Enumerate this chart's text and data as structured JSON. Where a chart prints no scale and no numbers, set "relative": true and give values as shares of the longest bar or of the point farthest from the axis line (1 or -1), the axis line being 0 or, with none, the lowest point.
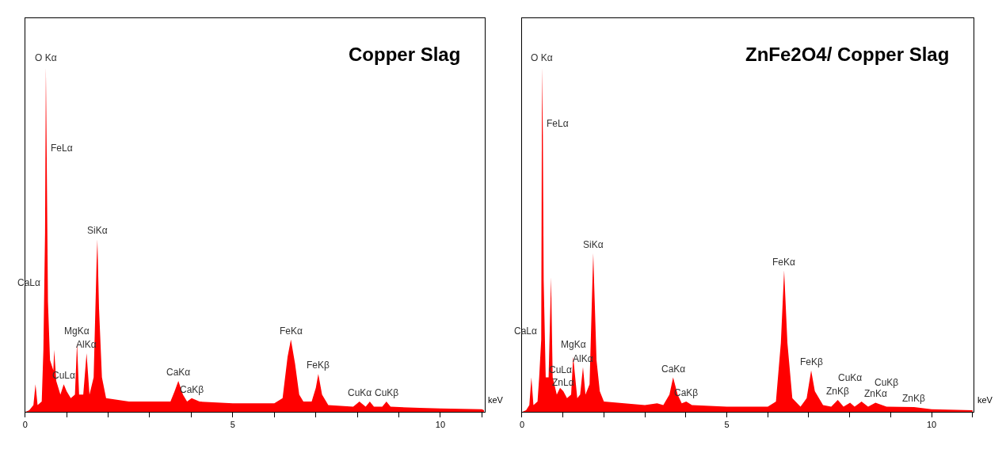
{
  "chart_data": [
    {
      "type": "area",
      "title": "Copper Slag",
      "xlabel": "keV",
      "relative": true,
      "xlim": [
        0,
        11.06
      ],
      "xticks": [
        0,
        {
          "value": 1,
          "label": null
        },
        {
          "value": 2,
          "label": null
        },
        {
          "value": 3,
          "label": null
        },
        {
          "value": 4,
          "label": null
        },
        5,
        {
          "value": 6,
          "label": null
        },
        {
          "value": 7,
          "label": null
        },
        {
          "value": 8,
          "label": null
        },
        {
          "value": 9,
          "label": null
        },
        10,
        {
          "value": 11,
          "label": null
        }
      ],
      "tick_labels": "x",
      "series": [
        {
          "color": "#ff0000",
          "x": [
            0,
            0.1,
            0.2,
            0.25,
            0.3,
            0.4,
            0.44,
            0.46,
            0.48,
            0.5,
            0.52,
            0.55,
            0.6,
            0.68,
            0.7,
            0.75,
            0.85,
            0.93,
            1.0,
            1.1,
            1.2,
            1.25,
            1.3,
            1.4,
            1.48,
            1.55,
            1.65,
            1.72,
            1.74,
            1.78,
            1.85,
            1.95,
            2.5,
            3.0,
            3.5,
            3.6,
            3.69,
            3.8,
            3.9,
            4.01,
            4.2,
            5,
            6.0,
            6.2,
            6.32,
            6.4,
            6.5,
            6.6,
            6.7,
            6.9,
            7.0,
            7.06,
            7.15,
            7.3,
            7.9,
            8.05,
            8.2,
            8.3,
            8.4,
            8.6,
            8.7,
            8.8,
            9.5,
            10,
            11,
            11.05
          ],
          "values": [
            0,
            0.005,
            0.02,
            0.08,
            0.02,
            0.03,
            0.18,
            0.35,
            0.52,
            1.0,
            0.74,
            0.32,
            0.15,
            0.12,
            0.18,
            0.09,
            0.05,
            0.08,
            0.06,
            0.04,
            0.05,
            0.2,
            0.05,
            0.05,
            0.17,
            0.05,
            0.1,
            0.43,
            0.5,
            0.3,
            0.1,
            0.04,
            0.03,
            0.03,
            0.03,
            0.06,
            0.09,
            0.05,
            0.03,
            0.04,
            0.03,
            0.025,
            0.025,
            0.04,
            0.16,
            0.21,
            0.14,
            0.05,
            0.03,
            0.03,
            0.07,
            0.11,
            0.05,
            0.02,
            0.015,
            0.03,
            0.015,
            0.03,
            0.015,
            0.015,
            0.03,
            0.015,
            0.012,
            0.01,
            0.008,
            0.005
          ]
        }
      ],
      "annotations": [
        {
          "text": "O Kα",
          "x": 0.5,
          "y": 1.0
        },
        {
          "text": "FeLα",
          "x": 0.52,
          "y": 0.74
        },
        {
          "text": "SiKα",
          "x": 1.74,
          "y": 0.5
        },
        {
          "text": "CaLα",
          "x": 0.46,
          "y": 0.35
        },
        {
          "text": "AlKα",
          "x": 1.48,
          "y": 0.17
        },
        {
          "text": "MgKα",
          "x": 1.25,
          "y": 0.2
        },
        {
          "text": "CuLα",
          "x": 0.93,
          "y": 0.08
        },
        {
          "text": "CaKα",
          "x": 3.69,
          "y": 0.09
        },
        {
          "text": "CaKβ",
          "x": 4.01,
          "y": 0.04
        },
        {
          "text": "FeKα",
          "x": 6.4,
          "y": 0.21
        },
        {
          "text": "FeKβ",
          "x": 7.06,
          "y": 0.11
        },
        {
          "text": "CuKα",
          "x": 8.05,
          "y": 0.03
        },
        {
          "text": "CuKβ",
          "x": 8.7,
          "y": 0.03
        }
      ]
    },
    {
      "type": "area",
      "title": "ZnFe2O4/ Copper Slag",
      "xlabel": "keV",
      "relative": true,
      "xlim": [
        0,
        11.02
      ],
      "xticks": [
        0,
        {
          "value": 1,
          "label": null
        },
        {
          "value": 2,
          "label": null
        },
        {
          "value": 3,
          "label": null
        },
        {
          "value": 4,
          "label": null
        },
        5,
        {
          "value": 6,
          "label": null
        },
        {
          "value": 7,
          "label": null
        },
        {
          "value": 8,
          "label": null
        },
        {
          "value": 9,
          "label": null
        },
        10,
        {
          "value": 11,
          "label": null
        }
      ],
      "tick_labels": "x",
      "series": [
        {
          "color": "#ff0000",
          "x": [
            0,
            0.1,
            0.18,
            0.23,
            0.28,
            0.38,
            0.42,
            0.47,
            0.49,
            0.51,
            0.53,
            0.58,
            0.65,
            0.71,
            0.75,
            0.85,
            0.93,
            1.01,
            1.1,
            1.2,
            1.25,
            1.35,
            1.42,
            1.49,
            1.55,
            1.65,
            1.72,
            1.74,
            1.76,
            1.82,
            1.9,
            2.0,
            2.5,
            3.0,
            3.3,
            3.45,
            3.6,
            3.69,
            3.8,
            3.9,
            4.01,
            4.15,
            5.0,
            6.0,
            6.2,
            6.32,
            6.4,
            6.48,
            6.6,
            6.8,
            6.95,
            7.06,
            7.15,
            7.35,
            7.55,
            7.71,
            7.85,
            8.01,
            8.12,
            8.29,
            8.45,
            8.63,
            8.9,
            9.57,
            10.0,
            11.0
          ],
          "values": [
            0,
            0.005,
            0.02,
            0.1,
            0.02,
            0.03,
            0.1,
            0.21,
            1.0,
            0.81,
            0.38,
            0.1,
            0.1,
            0.39,
            0.1,
            0.05,
            0.07,
            0.06,
            0.04,
            0.05,
            0.16,
            0.04,
            0.05,
            0.13,
            0.05,
            0.08,
            0.38,
            0.46,
            0.38,
            0.15,
            0.06,
            0.03,
            0.025,
            0.02,
            0.025,
            0.02,
            0.05,
            0.1,
            0.05,
            0.025,
            0.03,
            0.02,
            0.015,
            0.015,
            0.03,
            0.2,
            0.41,
            0.2,
            0.04,
            0.015,
            0.04,
            0.12,
            0.06,
            0.02,
            0.015,
            0.035,
            0.015,
            0.027,
            0.015,
            0.03,
            0.015,
            0.027,
            0.015,
            0.014,
            0.008,
            0.005
          ]
        }
      ],
      "annotations": [
        {
          "text": "O Kα",
          "x": 0.49,
          "y": 1.0
        },
        {
          "text": "FeLα",
          "x": 0.51,
          "y": 0.81
        },
        {
          "text": "CaLα",
          "x": 0.47,
          "y": 0.21
        },
        {
          "text": "SiKα",
          "x": 1.74,
          "y": 0.46
        },
        {
          "text": "FeKα",
          "x": 6.4,
          "y": 0.41
        },
        {
          "text": "AlKα",
          "x": 1.49,
          "y": 0.13
        },
        {
          "text": "MgKα",
          "x": 1.25,
          "y": 0.16
        },
        {
          "text": "ZnLα",
          "x": 1.01,
          "y": 0.06
        },
        {
          "text": "CuLα",
          "x": 0.93,
          "y": 0.07
        },
        {
          "text": "CaKα",
          "x": 3.69,
          "y": 0.1
        },
        {
          "text": "CaKβ",
          "x": 4.01,
          "y": 0.03
        },
        {
          "text": "FeKβ",
          "x": 7.06,
          "y": 0.12
        },
        {
          "text": "ZnKβ",
          "x": 7.71,
          "y": 0.035
        },
        {
          "text": "ZnKα",
          "x": 8.63,
          "y": 0.027
        },
        {
          "text": "CuKα",
          "x": 8.01,
          "y": 0.027
        },
        {
          "text": "CuKβ",
          "x": 8.9,
          "y": 0.015
        },
        {
          "text": "ZnKβ",
          "x": 9.57,
          "y": 0.014
        }
      ]
    }
  ]
}
